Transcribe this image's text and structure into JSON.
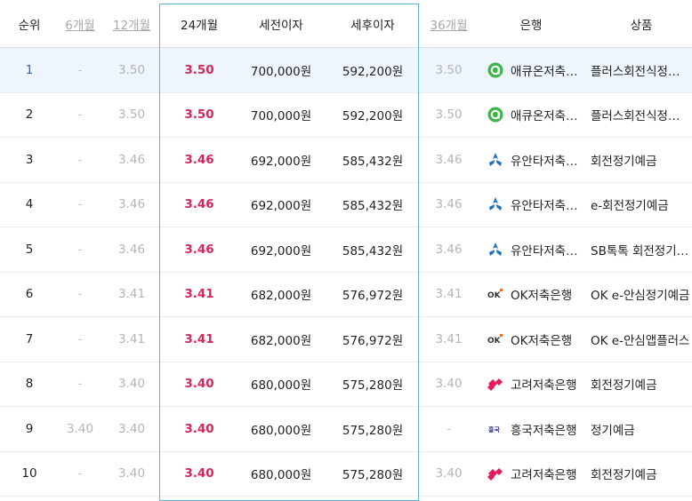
{
  "header": {
    "rank": "순위",
    "m6": "6개월",
    "m12": "12개월",
    "m24": "24개월",
    "pre_tax": "세전이자",
    "post_tax": "세후이자",
    "m36": "36개월",
    "bank": "은행",
    "product": "상품"
  },
  "colors": {
    "rate_highlight": "#d6275a",
    "active_rank": "#2a63c5",
    "row_highlight": "#eef5fd",
    "column_box": "#5fb4d9"
  },
  "rows": [
    {
      "rank": "1",
      "m6": "-",
      "m12": "3.50",
      "m24": "3.50",
      "pre_tax": "700,000원",
      "post_tax": "592,200원",
      "m36": "3.50",
      "bank": "애큐온저축은행",
      "bank_icon": "acuon-icon",
      "product": "플러스회전식정기예금"
    },
    {
      "rank": "2",
      "m6": "-",
      "m12": "3.50",
      "m24": "3.50",
      "pre_tax": "700,000원",
      "post_tax": "592,200원",
      "m36": "3.50",
      "bank": "애큐온저축은행",
      "bank_icon": "acuon-icon",
      "product": "플러스회전식정기예금"
    },
    {
      "rank": "3",
      "m6": "-",
      "m12": "3.46",
      "m24": "3.46",
      "pre_tax": "692,000원",
      "post_tax": "585,432원",
      "m36": "3.46",
      "bank": "유안타저축은행",
      "bank_icon": "yuanta-icon",
      "product": "회전정기예금"
    },
    {
      "rank": "4",
      "m6": "-",
      "m12": "3.46",
      "m24": "3.46",
      "pre_tax": "692,000원",
      "post_tax": "585,432원",
      "m36": "3.46",
      "bank": "유안타저축은행",
      "bank_icon": "yuanta-icon",
      "product": "e-회전정기예금"
    },
    {
      "rank": "5",
      "m6": "-",
      "m12": "3.46",
      "m24": "3.46",
      "pre_tax": "692,000원",
      "post_tax": "585,432원",
      "m36": "3.46",
      "bank": "유안타저축은행",
      "bank_icon": "yuanta-icon",
      "product": "SB톡톡 회전정기예금"
    },
    {
      "rank": "6",
      "m6": "-",
      "m12": "3.41",
      "m24": "3.41",
      "pre_tax": "682,000원",
      "post_tax": "576,972원",
      "m36": "3.41",
      "bank": "OK저축은행",
      "bank_icon": "ok-icon",
      "product": "OK e-안심정기예금"
    },
    {
      "rank": "7",
      "m6": "-",
      "m12": "3.41",
      "m24": "3.41",
      "pre_tax": "682,000원",
      "post_tax": "576,972원",
      "m36": "3.41",
      "bank": "OK저축은행",
      "bank_icon": "ok-icon",
      "product": "OK e-안심앱플러스"
    },
    {
      "rank": "8",
      "m6": "-",
      "m12": "3.40",
      "m24": "3.40",
      "pre_tax": "680,000원",
      "post_tax": "575,280원",
      "m36": "3.40",
      "bank": "고려저축은행",
      "bank_icon": "goryeo-icon",
      "product": "회전정기예금"
    },
    {
      "rank": "9",
      "m6": "3.40",
      "m12": "3.40",
      "m24": "3.40",
      "pre_tax": "680,000원",
      "post_tax": "575,280원",
      "m36": "-",
      "bank": "흥국저축은행",
      "bank_icon": "heungkuk-icon",
      "product": "정기예금"
    },
    {
      "rank": "10",
      "m6": "-",
      "m12": "3.40",
      "m24": "3.40",
      "pre_tax": "680,000원",
      "post_tax": "575,280원",
      "m36": "3.40",
      "bank": "고려저축은행",
      "bank_icon": "goryeo-icon",
      "product": "회전정기예금"
    }
  ]
}
